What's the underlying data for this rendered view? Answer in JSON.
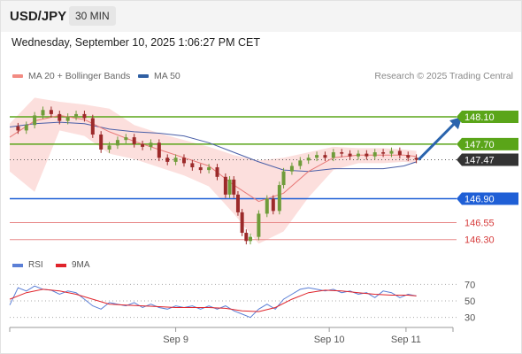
{
  "header": {
    "pair": "USD/JPY",
    "timeframe": "30 MIN"
  },
  "timestamp": "Wednesday, September 10, 2025 1:06:27 PM CET",
  "legend": [
    {
      "label": "MA 20 + Bollinger Bands",
      "color": "#f28b82"
    },
    {
      "label": "MA 50",
      "color": "#2f5fa3"
    }
  ],
  "credit": "Research © 2025 Trading Central",
  "indicator_legend": [
    {
      "label": "RSI",
      "color": "#5b7fd6"
    },
    {
      "label": "9MA",
      "color": "#e0242b"
    }
  ],
  "colors": {
    "resistance": "#5aa519",
    "support": "#1f5fd6",
    "support_light": "#e88a8a",
    "current": "#333333",
    "arrow": "#2a64ad",
    "candle_up": "#6f9c3a",
    "candle_down": "#9c2a2a",
    "band": "#fbd9d7"
  },
  "chart_data": [
    {
      "type": "candlestick",
      "ylim": [
        146.18,
        148.45
      ],
      "xlim": [
        0,
        1
      ],
      "x_labels": [
        {
          "label": "Sep 9",
          "x": 0.4
        },
        {
          "label": "Sep 10",
          "x": 0.77
        },
        {
          "label": "Sep 11",
          "x": 0.955
        }
      ],
      "levels": [
        {
          "label": "148.10",
          "value": 148.1,
          "kind": "resistance",
          "style": "solid"
        },
        {
          "label": "147.70",
          "value": 147.7,
          "kind": "resistance",
          "style": "solid"
        },
        {
          "label": "147.47",
          "value": 147.47,
          "kind": "current",
          "style": "dotted"
        },
        {
          "label": "146.90",
          "value": 146.9,
          "kind": "support",
          "style": "solid"
        },
        {
          "label": "146.55",
          "value": 146.55,
          "kind": "support_light",
          "style": "solid"
        },
        {
          "label": "146.30",
          "value": 146.3,
          "kind": "support_light",
          "style": "solid"
        }
      ],
      "close_series": [
        {
          "x": 0.0,
          "y": 147.96
        },
        {
          "x": 0.02,
          "y": 147.9
        },
        {
          "x": 0.04,
          "y": 147.98
        },
        {
          "x": 0.06,
          "y": 148.12
        },
        {
          "x": 0.08,
          "y": 148.2
        },
        {
          "x": 0.1,
          "y": 148.14
        },
        {
          "x": 0.12,
          "y": 148.04
        },
        {
          "x": 0.14,
          "y": 148.1
        },
        {
          "x": 0.16,
          "y": 148.14
        },
        {
          "x": 0.18,
          "y": 148.08
        },
        {
          "x": 0.2,
          "y": 147.84
        },
        {
          "x": 0.22,
          "y": 147.62
        },
        {
          "x": 0.24,
          "y": 147.68
        },
        {
          "x": 0.26,
          "y": 147.76
        },
        {
          "x": 0.28,
          "y": 147.8
        },
        {
          "x": 0.3,
          "y": 147.7
        },
        {
          "x": 0.32,
          "y": 147.66
        },
        {
          "x": 0.34,
          "y": 147.72
        },
        {
          "x": 0.36,
          "y": 147.5
        },
        {
          "x": 0.38,
          "y": 147.44
        },
        {
          "x": 0.4,
          "y": 147.5
        },
        {
          "x": 0.42,
          "y": 147.42
        },
        {
          "x": 0.44,
          "y": 147.36
        },
        {
          "x": 0.46,
          "y": 147.32
        },
        {
          "x": 0.48,
          "y": 147.36
        },
        {
          "x": 0.5,
          "y": 147.22
        },
        {
          "x": 0.52,
          "y": 146.96
        },
        {
          "x": 0.53,
          "y": 147.18
        },
        {
          "x": 0.54,
          "y": 146.96
        },
        {
          "x": 0.55,
          "y": 146.7
        },
        {
          "x": 0.56,
          "y": 146.4
        },
        {
          "x": 0.57,
          "y": 146.28
        },
        {
          "x": 0.58,
          "y": 146.34
        },
        {
          "x": 0.6,
          "y": 146.68
        },
        {
          "x": 0.62,
          "y": 146.9
        },
        {
          "x": 0.635,
          "y": 146.72
        },
        {
          "x": 0.65,
          "y": 147.1
        },
        {
          "x": 0.66,
          "y": 147.3
        },
        {
          "x": 0.68,
          "y": 147.38
        },
        {
          "x": 0.7,
          "y": 147.46
        },
        {
          "x": 0.72,
          "y": 147.5
        },
        {
          "x": 0.74,
          "y": 147.54
        },
        {
          "x": 0.76,
          "y": 147.5
        },
        {
          "x": 0.78,
          "y": 147.58
        },
        {
          "x": 0.8,
          "y": 147.56
        },
        {
          "x": 0.82,
          "y": 147.52
        },
        {
          "x": 0.84,
          "y": 147.56
        },
        {
          "x": 0.86,
          "y": 147.52
        },
        {
          "x": 0.88,
          "y": 147.58
        },
        {
          "x": 0.9,
          "y": 147.56
        },
        {
          "x": 0.92,
          "y": 147.6
        },
        {
          "x": 0.94,
          "y": 147.54
        },
        {
          "x": 0.96,
          "y": 147.5
        },
        {
          "x": 0.98,
          "y": 147.47
        }
      ],
      "ma50": [
        {
          "x": 0.0,
          "y": 147.95
        },
        {
          "x": 0.06,
          "y": 148.0
        },
        {
          "x": 0.12,
          "y": 148.02
        },
        {
          "x": 0.18,
          "y": 148.0
        },
        {
          "x": 0.24,
          "y": 147.92
        },
        {
          "x": 0.3,
          "y": 147.88
        },
        {
          "x": 0.36,
          "y": 147.86
        },
        {
          "x": 0.42,
          "y": 147.82
        },
        {
          "x": 0.48,
          "y": 147.72
        },
        {
          "x": 0.54,
          "y": 147.58
        },
        {
          "x": 0.6,
          "y": 147.44
        },
        {
          "x": 0.66,
          "y": 147.32
        },
        {
          "x": 0.72,
          "y": 147.3
        },
        {
          "x": 0.78,
          "y": 147.34
        },
        {
          "x": 0.84,
          "y": 147.34
        },
        {
          "x": 0.9,
          "y": 147.34
        },
        {
          "x": 0.95,
          "y": 147.38
        },
        {
          "x": 0.98,
          "y": 147.44
        }
      ],
      "ma20": [
        {
          "x": 0.0,
          "y": 147.8
        },
        {
          "x": 0.06,
          "y": 148.04
        },
        {
          "x": 0.12,
          "y": 148.12
        },
        {
          "x": 0.18,
          "y": 148.06
        },
        {
          "x": 0.24,
          "y": 147.88
        },
        {
          "x": 0.3,
          "y": 147.74
        },
        {
          "x": 0.36,
          "y": 147.62
        },
        {
          "x": 0.42,
          "y": 147.5
        },
        {
          "x": 0.48,
          "y": 147.38
        },
        {
          "x": 0.54,
          "y": 147.1
        },
        {
          "x": 0.6,
          "y": 146.86
        },
        {
          "x": 0.66,
          "y": 146.98
        },
        {
          "x": 0.72,
          "y": 147.3
        },
        {
          "x": 0.78,
          "y": 147.5
        },
        {
          "x": 0.84,
          "y": 147.54
        },
        {
          "x": 0.9,
          "y": 147.54
        },
        {
          "x": 0.95,
          "y": 147.54
        },
        {
          "x": 0.98,
          "y": 147.52
        }
      ],
      "band_upper": [
        {
          "x": 0.0,
          "y": 148.0
        },
        {
          "x": 0.06,
          "y": 148.38
        },
        {
          "x": 0.12,
          "y": 148.32
        },
        {
          "x": 0.18,
          "y": 148.28
        },
        {
          "x": 0.24,
          "y": 148.22
        },
        {
          "x": 0.3,
          "y": 147.98
        },
        {
          "x": 0.36,
          "y": 147.86
        },
        {
          "x": 0.42,
          "y": 147.76
        },
        {
          "x": 0.48,
          "y": 147.66
        },
        {
          "x": 0.54,
          "y": 147.54
        },
        {
          "x": 0.6,
          "y": 147.46
        },
        {
          "x": 0.66,
          "y": 147.5
        },
        {
          "x": 0.72,
          "y": 147.58
        },
        {
          "x": 0.78,
          "y": 147.66
        },
        {
          "x": 0.84,
          "y": 147.64
        },
        {
          "x": 0.9,
          "y": 147.64
        },
        {
          "x": 0.95,
          "y": 147.62
        },
        {
          "x": 0.98,
          "y": 147.6
        }
      ],
      "band_lower": [
        {
          "x": 0.0,
          "y": 147.3
        },
        {
          "x": 0.06,
          "y": 147.0
        },
        {
          "x": 0.12,
          "y": 147.9
        },
        {
          "x": 0.18,
          "y": 147.82
        },
        {
          "x": 0.24,
          "y": 147.56
        },
        {
          "x": 0.3,
          "y": 147.48
        },
        {
          "x": 0.36,
          "y": 147.36
        },
        {
          "x": 0.42,
          "y": 147.24
        },
        {
          "x": 0.48,
          "y": 147.08
        },
        {
          "x": 0.54,
          "y": 146.68
        },
        {
          "x": 0.6,
          "y": 146.24
        },
        {
          "x": 0.66,
          "y": 146.42
        },
        {
          "x": 0.72,
          "y": 146.92
        },
        {
          "x": 0.78,
          "y": 147.32
        },
        {
          "x": 0.84,
          "y": 147.42
        },
        {
          "x": 0.9,
          "y": 147.42
        },
        {
          "x": 0.95,
          "y": 147.44
        },
        {
          "x": 0.98,
          "y": 147.42
        }
      ],
      "forecast_arrow": {
        "from": {
          "x": 0.985,
          "y": 147.47
        },
        "to": {
          "x": 1.09,
          "y": 148.1
        }
      }
    },
    {
      "type": "line",
      "name": "RSI",
      "ylim": [
        20,
        80
      ],
      "ticks": [
        70,
        50,
        30
      ],
      "rsi": [
        {
          "x": 0.0,
          "y": 45
        },
        {
          "x": 0.02,
          "y": 66
        },
        {
          "x": 0.04,
          "y": 62
        },
        {
          "x": 0.06,
          "y": 68
        },
        {
          "x": 0.08,
          "y": 64
        },
        {
          "x": 0.1,
          "y": 63
        },
        {
          "x": 0.12,
          "y": 58
        },
        {
          "x": 0.14,
          "y": 62
        },
        {
          "x": 0.16,
          "y": 60
        },
        {
          "x": 0.18,
          "y": 52
        },
        {
          "x": 0.2,
          "y": 44
        },
        {
          "x": 0.22,
          "y": 40
        },
        {
          "x": 0.24,
          "y": 48
        },
        {
          "x": 0.26,
          "y": 46
        },
        {
          "x": 0.28,
          "y": 44
        },
        {
          "x": 0.3,
          "y": 48
        },
        {
          "x": 0.32,
          "y": 42
        },
        {
          "x": 0.34,
          "y": 46
        },
        {
          "x": 0.36,
          "y": 42
        },
        {
          "x": 0.38,
          "y": 40
        },
        {
          "x": 0.4,
          "y": 44
        },
        {
          "x": 0.42,
          "y": 42
        },
        {
          "x": 0.44,
          "y": 44
        },
        {
          "x": 0.46,
          "y": 40
        },
        {
          "x": 0.48,
          "y": 44
        },
        {
          "x": 0.5,
          "y": 40
        },
        {
          "x": 0.52,
          "y": 44
        },
        {
          "x": 0.54,
          "y": 38
        },
        {
          "x": 0.56,
          "y": 34
        },
        {
          "x": 0.58,
          "y": 30
        },
        {
          "x": 0.6,
          "y": 40
        },
        {
          "x": 0.62,
          "y": 46
        },
        {
          "x": 0.64,
          "y": 40
        },
        {
          "x": 0.66,
          "y": 52
        },
        {
          "x": 0.68,
          "y": 58
        },
        {
          "x": 0.7,
          "y": 64
        },
        {
          "x": 0.72,
          "y": 66
        },
        {
          "x": 0.74,
          "y": 64
        },
        {
          "x": 0.76,
          "y": 62
        },
        {
          "x": 0.78,
          "y": 64
        },
        {
          "x": 0.8,
          "y": 60
        },
        {
          "x": 0.82,
          "y": 62
        },
        {
          "x": 0.84,
          "y": 58
        },
        {
          "x": 0.86,
          "y": 60
        },
        {
          "x": 0.88,
          "y": 54
        },
        {
          "x": 0.9,
          "y": 62
        },
        {
          "x": 0.92,
          "y": 60
        },
        {
          "x": 0.94,
          "y": 54
        },
        {
          "x": 0.96,
          "y": 58
        },
        {
          "x": 0.98,
          "y": 56
        }
      ],
      "ma9": [
        {
          "x": 0.0,
          "y": 52
        },
        {
          "x": 0.04,
          "y": 60
        },
        {
          "x": 0.08,
          "y": 64
        },
        {
          "x": 0.12,
          "y": 62
        },
        {
          "x": 0.16,
          "y": 58
        },
        {
          "x": 0.2,
          "y": 52
        },
        {
          "x": 0.24,
          "y": 46
        },
        {
          "x": 0.28,
          "y": 45
        },
        {
          "x": 0.32,
          "y": 44
        },
        {
          "x": 0.36,
          "y": 43
        },
        {
          "x": 0.4,
          "y": 42
        },
        {
          "x": 0.44,
          "y": 42
        },
        {
          "x": 0.48,
          "y": 42
        },
        {
          "x": 0.52,
          "y": 41
        },
        {
          "x": 0.56,
          "y": 38
        },
        {
          "x": 0.6,
          "y": 37
        },
        {
          "x": 0.64,
          "y": 42
        },
        {
          "x": 0.68,
          "y": 52
        },
        {
          "x": 0.72,
          "y": 60
        },
        {
          "x": 0.76,
          "y": 63
        },
        {
          "x": 0.8,
          "y": 62
        },
        {
          "x": 0.84,
          "y": 60
        },
        {
          "x": 0.88,
          "y": 58
        },
        {
          "x": 0.92,
          "y": 57
        },
        {
          "x": 0.96,
          "y": 57
        },
        {
          "x": 0.98,
          "y": 56
        }
      ]
    }
  ]
}
